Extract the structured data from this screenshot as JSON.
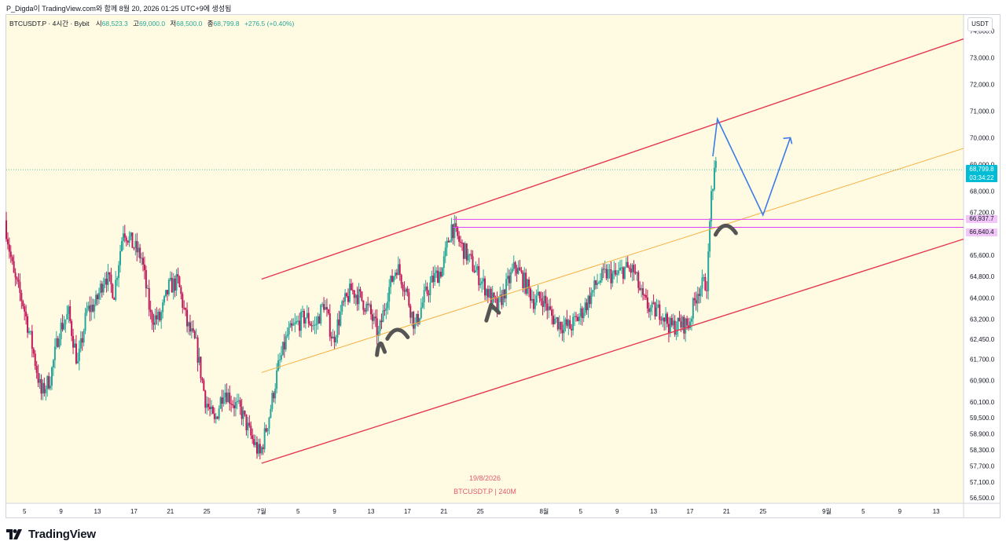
{
  "header": {
    "caption": "P_Digda이 TradingView.com와 함께 8월 20, 2026 01:25 UTC+9에 생성됨"
  },
  "ohlc": {
    "symbol": "BTCUSDT.P · 4시간 · Bybit",
    "open_label": "시",
    "open": "68,523.3",
    "high_label": "고",
    "high": "69,000.0",
    "low_label": "저",
    "low": "68,500.0",
    "close_label": "종",
    "close": "68,799.8",
    "change": "+276.5 (+0.40%)"
  },
  "price_axis": {
    "currency": "USDT",
    "current_price": "68,799.8",
    "countdown": "03:34:22",
    "level_upper": "66,937.7",
    "level_lower": "66,640.4"
  },
  "watermark": {
    "date": "19/8/2026",
    "symbol": "BTCUSDT.P | 240M"
  },
  "branding": {
    "name": "TradingView"
  },
  "colors": {
    "background": "#fffbe3",
    "up": "#26a69a",
    "up_strong": "#22ab94",
    "down": "#c2185b",
    "channel": "#e53950",
    "midline": "#f5b041",
    "level": "#e040fb",
    "projection": "#3d7be8",
    "pattern_mark": "#555555",
    "price_badge": "#00bcd4",
    "watermark": "#e05a6e"
  },
  "chart_data": {
    "type": "candlestick",
    "symbol": "BTCUSDT.P",
    "timeframe": "4시간",
    "exchange": "Bybit",
    "ylim": [
      56300,
      74600
    ],
    "y_ticks": [
      74000,
      73000,
      72000,
      71000,
      70000,
      69000,
      68000,
      67200,
      66400,
      65600,
      64800,
      64000,
      63200,
      62450,
      61700,
      60900,
      60100,
      59500,
      58900,
      58300,
      57700,
      57100,
      56500
    ],
    "y_tick_labels": [
      "74,000.0",
      "73,000.0",
      "72,000.0",
      "71,000.0",
      "70,000.0",
      "69,000.0",
      "68,000.0",
      "67,200.0",
      "66,400.0",
      "65,600.0",
      "64,800.0",
      "64,000.0",
      "63,200.0",
      "62,450.0",
      "61,700.0",
      "60,900.0",
      "60,100.0",
      "59,500.0",
      "58,900.0",
      "58,300.0",
      "57,700.0",
      "57,100.0",
      "56,500.0"
    ],
    "x_range": [
      "2026-06-03",
      "2026-09-16"
    ],
    "x_ticks": [
      {
        "date": "2026-06-05",
        "label": "5"
      },
      {
        "date": "2026-06-09",
        "label": "9"
      },
      {
        "date": "2026-06-13",
        "label": "13"
      },
      {
        "date": "2026-06-17",
        "label": "17"
      },
      {
        "date": "2026-06-21",
        "label": "21"
      },
      {
        "date": "2026-06-25",
        "label": "25"
      },
      {
        "date": "2026-07-01",
        "label": "7월"
      },
      {
        "date": "2026-07-05",
        "label": "5"
      },
      {
        "date": "2026-07-09",
        "label": "9"
      },
      {
        "date": "2026-07-13",
        "label": "13"
      },
      {
        "date": "2026-07-17",
        "label": "17"
      },
      {
        "date": "2026-07-21",
        "label": "21"
      },
      {
        "date": "2026-07-25",
        "label": "25"
      },
      {
        "date": "2026-08-01",
        "label": "8월"
      },
      {
        "date": "2026-08-05",
        "label": "5"
      },
      {
        "date": "2026-08-09",
        "label": "9"
      },
      {
        "date": "2026-08-13",
        "label": "13"
      },
      {
        "date": "2026-08-17",
        "label": "17"
      },
      {
        "date": "2026-08-21",
        "label": "21"
      },
      {
        "date": "2026-08-25",
        "label": "25"
      },
      {
        "date": "2026-09-01",
        "label": "9월"
      },
      {
        "date": "2026-09-05",
        "label": "5"
      },
      {
        "date": "2026-09-09",
        "label": "9"
      },
      {
        "date": "2026-09-13",
        "label": "13"
      }
    ],
    "price_path": [
      [
        "2026-06-03",
        66900
      ],
      [
        "2026-06-04",
        64800
      ],
      [
        "2026-06-05",
        63800
      ],
      [
        "2026-06-06",
        62200
      ],
      [
        "2026-06-07",
        60400
      ],
      [
        "2026-06-08",
        61000
      ],
      [
        "2026-06-09",
        62800
      ],
      [
        "2026-06-10",
        63400
      ],
      [
        "2026-06-11",
        61500
      ],
      [
        "2026-06-12",
        63500
      ],
      [
        "2026-06-13",
        63800
      ],
      [
        "2026-06-14",
        64900
      ],
      [
        "2026-06-15",
        64200
      ],
      [
        "2026-06-16",
        66600
      ],
      [
        "2026-06-17",
        66000
      ],
      [
        "2026-06-18",
        65500
      ],
      [
        "2026-06-19",
        63300
      ],
      [
        "2026-06-20",
        63200
      ],
      [
        "2026-06-21",
        64400
      ],
      [
        "2026-06-22",
        64600
      ],
      [
        "2026-06-23",
        63000
      ],
      [
        "2026-06-24",
        62200
      ],
      [
        "2026-06-25",
        60200
      ],
      [
        "2026-06-26",
        59300
      ],
      [
        "2026-06-27",
        60600
      ],
      [
        "2026-06-28",
        60100
      ],
      [
        "2026-06-29",
        59700
      ],
      [
        "2026-06-30",
        58800
      ],
      [
        "2026-07-01",
        58100
      ],
      [
        "2026-07-02",
        59600
      ],
      [
        "2026-07-03",
        61400
      ],
      [
        "2026-07-04",
        62600
      ],
      [
        "2026-07-05",
        63000
      ],
      [
        "2026-07-06",
        63300
      ],
      [
        "2026-07-07",
        62900
      ],
      [
        "2026-07-08",
        63800
      ],
      [
        "2026-07-09",
        62400
      ],
      [
        "2026-07-10",
        63600
      ],
      [
        "2026-07-11",
        64300
      ],
      [
        "2026-07-12",
        64000
      ],
      [
        "2026-07-13",
        63500
      ],
      [
        "2026-07-14",
        62600
      ],
      [
        "2026-07-15",
        64200
      ],
      [
        "2026-07-16",
        65200
      ],
      [
        "2026-07-17",
        64300
      ],
      [
        "2026-07-18",
        62900
      ],
      [
        "2026-07-19",
        64000
      ],
      [
        "2026-07-20",
        64700
      ],
      [
        "2026-07-21",
        65100
      ],
      [
        "2026-07-22",
        66700
      ],
      [
        "2026-07-23",
        66000
      ],
      [
        "2026-07-24",
        65400
      ],
      [
        "2026-07-25",
        64800
      ],
      [
        "2026-07-26",
        64200
      ],
      [
        "2026-07-27",
        63600
      ],
      [
        "2026-07-28",
        64400
      ],
      [
        "2026-07-29",
        65200
      ],
      [
        "2026-07-30",
        64600
      ],
      [
        "2026-07-31",
        63900
      ],
      [
        "2026-08-01",
        64000
      ],
      [
        "2026-08-02",
        63300
      ],
      [
        "2026-08-03",
        63000
      ],
      [
        "2026-08-04",
        62900
      ],
      [
        "2026-08-05",
        63300
      ],
      [
        "2026-08-06",
        63900
      ],
      [
        "2026-08-07",
        64600
      ],
      [
        "2026-08-08",
        64900
      ],
      [
        "2026-08-09",
        64800
      ],
      [
        "2026-08-10",
        65100
      ],
      [
        "2026-08-11",
        65000
      ],
      [
        "2026-08-12",
        63900
      ],
      [
        "2026-08-13",
        63500
      ],
      [
        "2026-08-14",
        63500
      ],
      [
        "2026-08-15",
        62900
      ],
      [
        "2026-08-16",
        63000
      ],
      [
        "2026-08-17",
        63000
      ],
      [
        "2026-08-18",
        64300
      ],
      [
        "2026-08-19",
        64600
      ],
      [
        "2026-08-19T12:00",
        68000
      ],
      [
        "2026-08-20",
        68800
      ]
    ],
    "last_close": 68799.8,
    "drawings": {
      "channel_upper": [
        [
          "2026-07-01",
          64700
        ],
        [
          "2026-09-16",
          73700
        ]
      ],
      "channel_lower": [
        [
          "2026-07-01",
          57800
        ],
        [
          "2026-09-16",
          66200
        ]
      ],
      "channel_mid": [
        [
          "2026-07-01",
          61200
        ],
        [
          "2026-09-16",
          69600
        ]
      ],
      "levels": [
        66937.7,
        66640.4
      ],
      "level_start": "2026-07-22",
      "projection": [
        [
          "2026-08-19T12:00",
          69300
        ],
        [
          "2026-08-20",
          70700
        ],
        [
          "2026-08-25",
          67100
        ],
        [
          "2026-08-28",
          70000
        ]
      ]
    },
    "pattern_marks": [
      {
        "date": "2026-07-14",
        "price": 62150,
        "shape": "cup"
      },
      {
        "date": "2026-07-16",
        "price": 62700,
        "shape": "cap"
      },
      {
        "date": "2026-07-26",
        "price": 63500,
        "shape": "slash"
      },
      {
        "date": "2026-08-21",
        "price": 66600,
        "shape": "cap"
      }
    ]
  }
}
